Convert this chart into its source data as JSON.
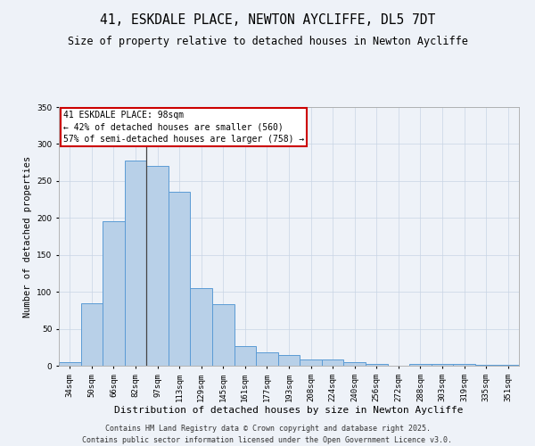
{
  "title_line1": "41, ESKDALE PLACE, NEWTON AYCLIFFE, DL5 7DT",
  "title_line2": "Size of property relative to detached houses in Newton Aycliffe",
  "xlabel": "Distribution of detached houses by size in Newton Aycliffe",
  "ylabel": "Number of detached properties",
  "categories": [
    "34sqm",
    "50sqm",
    "66sqm",
    "82sqm",
    "97sqm",
    "113sqm",
    "129sqm",
    "145sqm",
    "161sqm",
    "177sqm",
    "193sqm",
    "208sqm",
    "224sqm",
    "240sqm",
    "256sqm",
    "272sqm",
    "288sqm",
    "303sqm",
    "319sqm",
    "335sqm",
    "351sqm"
  ],
  "values": [
    5,
    84,
    196,
    278,
    270,
    235,
    105,
    83,
    26,
    18,
    14,
    8,
    8,
    5,
    2,
    0,
    3,
    2,
    2,
    1,
    1
  ],
  "bar_color": "#b8d0e8",
  "bar_edge_color": "#5b9bd5",
  "vertical_line_x": 3.5,
  "annotation_text_line1": "41 ESKDALE PLACE: 98sqm",
  "annotation_text_line2": "← 42% of detached houses are smaller (560)",
  "annotation_text_line3": "57% of semi-detached houses are larger (758) →",
  "annotation_box_facecolor": "#ffffff",
  "annotation_box_edgecolor": "#cc0000",
  "ylim": [
    0,
    350
  ],
  "yticks": [
    0,
    50,
    100,
    150,
    200,
    250,
    300,
    350
  ],
  "footer1": "Contains HM Land Registry data © Crown copyright and database right 2025.",
  "footer2": "Contains public sector information licensed under the Open Government Licence v3.0.",
  "bg_color": "#eef2f8",
  "grid_color": "#c8d4e4",
  "title1_fontsize": 10.5,
  "title2_fontsize": 8.5,
  "xlabel_fontsize": 8,
  "ylabel_fontsize": 7.5,
  "tick_fontsize": 6.5,
  "annotation_fontsize": 7,
  "footer_fontsize": 6
}
